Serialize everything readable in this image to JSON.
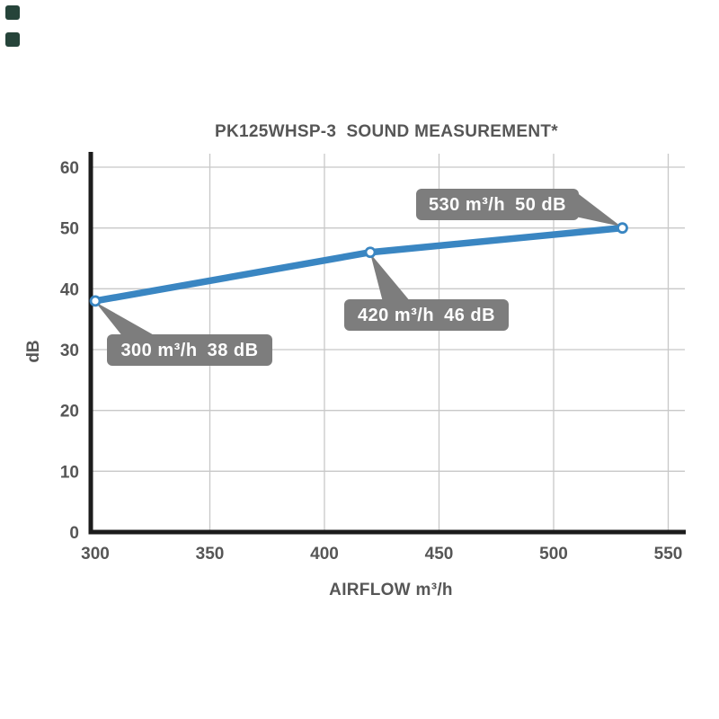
{
  "decorations": {
    "corner_squares": {
      "color": "#26443a",
      "count": 2
    }
  },
  "chart_data": {
    "type": "line",
    "title": "PK125WHSP-3  SOUND MEASUREMENT*",
    "xlabel": "AIRFLOW m³/h",
    "ylabel": "dB",
    "series": [
      {
        "name": "sound-level",
        "x": [
          300,
          420,
          530
        ],
        "y": [
          38,
          46,
          50
        ]
      }
    ],
    "x_ticks": [
      300,
      350,
      400,
      450,
      500,
      550
    ],
    "y_ticks": [
      0,
      10,
      20,
      30,
      40,
      50,
      60
    ],
    "xlim": [
      300,
      558
    ],
    "ylim": [
      0,
      62
    ],
    "grid": true,
    "legend_position": "none",
    "annotations": [
      {
        "x": 300,
        "y": 38,
        "flow": "300 m³/h",
        "level": "38 dB"
      },
      {
        "x": 420,
        "y": 46,
        "flow": "420 m³/h",
        "level": "46 dB"
      },
      {
        "x": 530,
        "y": 50,
        "flow": "530 m³/h",
        "level": "50 dB"
      }
    ],
    "colors": {
      "line": "#3a86c2",
      "marker_fill": "#ffffff",
      "annotation_bg": "#7d7d7d",
      "annotation_text": "#ffffff",
      "axis": "#1c1c1c",
      "grid": "#c8c8c8",
      "label": "#565656"
    }
  }
}
